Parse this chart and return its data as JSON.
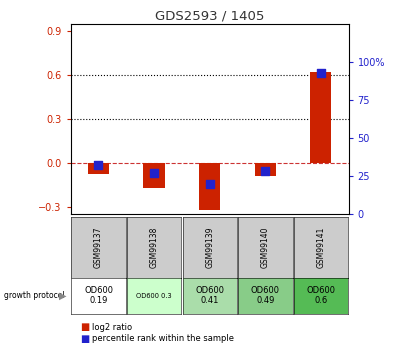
{
  "title": "GDS2593 / 1405",
  "samples": [
    "GSM99137",
    "GSM99138",
    "GSM99139",
    "GSM99140",
    "GSM99141"
  ],
  "log2_ratio": [
    -0.08,
    -0.17,
    -0.32,
    -0.09,
    0.62
  ],
  "percentile_rank": [
    32,
    27,
    20,
    28,
    93
  ],
  "growth_protocol_labels": [
    "OD600\n0.19",
    "OD600 0.3",
    "OD600\n0.41",
    "OD600\n0.49",
    "OD600\n0.6"
  ],
  "growth_protocol_small": [
    false,
    true,
    false,
    false,
    false
  ],
  "growth_protocol_colors": [
    "#ffffff",
    "#ccffcc",
    "#aaddaa",
    "#88cc88",
    "#55bb55"
  ],
  "ylim_left": [
    -0.35,
    0.95
  ],
  "ylim_right": [
    0,
    125
  ],
  "yticks_left": [
    -0.3,
    0.0,
    0.3,
    0.6,
    0.9
  ],
  "yticks_right": [
    0,
    25,
    50,
    75,
    100
  ],
  "hlines": [
    0.3,
    0.6
  ],
  "bar_color": "#cc2200",
  "dot_color": "#2222cc",
  "zero_line_color": "#cc3333",
  "title_color": "#333333",
  "left_tick_color": "#cc2200",
  "right_tick_color": "#2222cc",
  "left_label_100pct": "100%"
}
